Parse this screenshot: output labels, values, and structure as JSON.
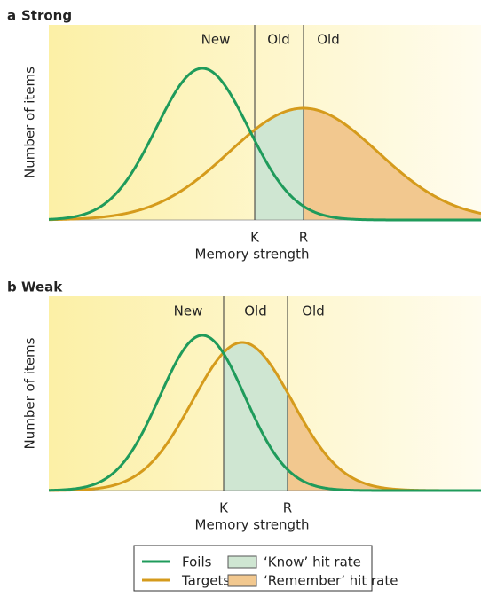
{
  "panels": [
    {
      "label": "a",
      "title": "Strong",
      "regions": [
        "New",
        "Old",
        "Old"
      ],
      "criteria": [
        "K",
        "R"
      ],
      "y_label": "Number of items",
      "x_label": "Memory strength"
    },
    {
      "label": "b",
      "title": "Weak",
      "regions": [
        "New",
        "Old",
        "Old"
      ],
      "criteria": [
        "K",
        "R"
      ],
      "y_label": "Number of items",
      "x_label": "Memory strength"
    }
  ],
  "legend": {
    "items": [
      "Foils",
      "Targets",
      "‘Know’ hit rate",
      "‘Remember’ hit rate"
    ]
  }
}
